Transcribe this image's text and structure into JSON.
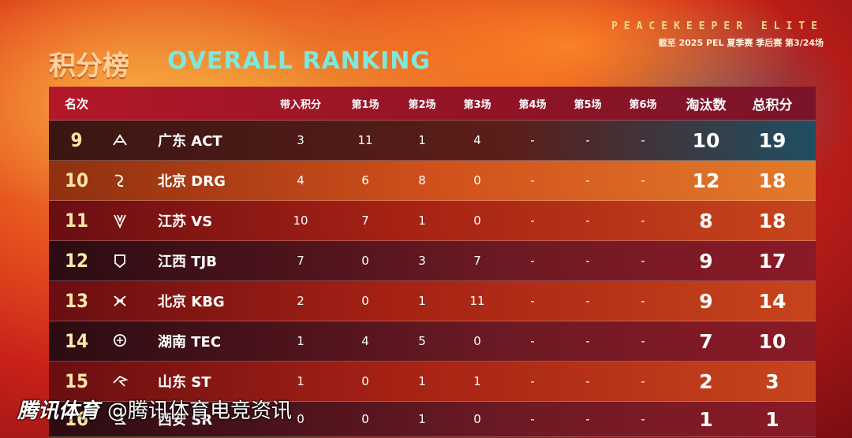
{
  "brand": {
    "line": "PEACEKEEPER ELITE",
    "sub": "截至 2025 PEL 夏季赛 季后赛 第3/24场"
  },
  "title": {
    "cn": "积分榜",
    "en": "OVERALL RANKING"
  },
  "headers": {
    "rank": "名次",
    "carry": "带入积分",
    "g1": "第1场",
    "g2": "第2场",
    "g3": "第3场",
    "g4": "第4场",
    "g5": "第5场",
    "g6": "第6场",
    "kill": "淘汰数",
    "total": "总积分"
  },
  "rows": [
    {
      "rank": "9",
      "team": "广东 ACT",
      "carry": "3",
      "g1": "11",
      "g2": "1",
      "g3": "4",
      "g4": "-",
      "g5": "-",
      "g6": "-",
      "kill": "10",
      "total": "19",
      "logo": "act-logo-icon"
    },
    {
      "rank": "10",
      "team": "北京 DRG",
      "carry": "4",
      "g1": "6",
      "g2": "8",
      "g3": "0",
      "g4": "-",
      "g5": "-",
      "g6": "-",
      "kill": "12",
      "total": "18",
      "logo": "drg-logo-icon"
    },
    {
      "rank": "11",
      "team": "江苏 VS",
      "carry": "10",
      "g1": "7",
      "g2": "1",
      "g3": "0",
      "g4": "-",
      "g5": "-",
      "g6": "-",
      "kill": "8",
      "total": "18",
      "logo": "vs-logo-icon"
    },
    {
      "rank": "12",
      "team": "江西 TJB",
      "carry": "7",
      "g1": "0",
      "g2": "3",
      "g3": "7",
      "g4": "-",
      "g5": "-",
      "g6": "-",
      "kill": "9",
      "total": "17",
      "logo": "tjb-logo-icon"
    },
    {
      "rank": "13",
      "team": "北京 KBG",
      "carry": "2",
      "g1": "0",
      "g2": "1",
      "g3": "11",
      "g4": "-",
      "g5": "-",
      "g6": "-",
      "kill": "9",
      "total": "14",
      "logo": "kbg-logo-icon"
    },
    {
      "rank": "14",
      "team": "湖南 TEC",
      "carry": "1",
      "g1": "4",
      "g2": "5",
      "g3": "0",
      "g4": "-",
      "g5": "-",
      "g6": "-",
      "kill": "7",
      "total": "10",
      "logo": "tec-logo-icon"
    },
    {
      "rank": "15",
      "team": "山东 ST",
      "carry": "1",
      "g1": "0",
      "g2": "1",
      "g3": "1",
      "g4": "-",
      "g5": "-",
      "g6": "-",
      "kill": "2",
      "total": "3",
      "logo": "st-logo-icon"
    },
    {
      "rank": "16",
      "team": "西安 SR",
      "carry": "0",
      "g1": "0",
      "g2": "1",
      "g3": "0",
      "g4": "-",
      "g5": "-",
      "g6": "-",
      "kill": "1",
      "total": "1",
      "logo": "sr-logo-icon"
    }
  ],
  "watermark": {
    "brand": "腾讯体育",
    "handle": "@腾讯体育电竞资讯"
  }
}
